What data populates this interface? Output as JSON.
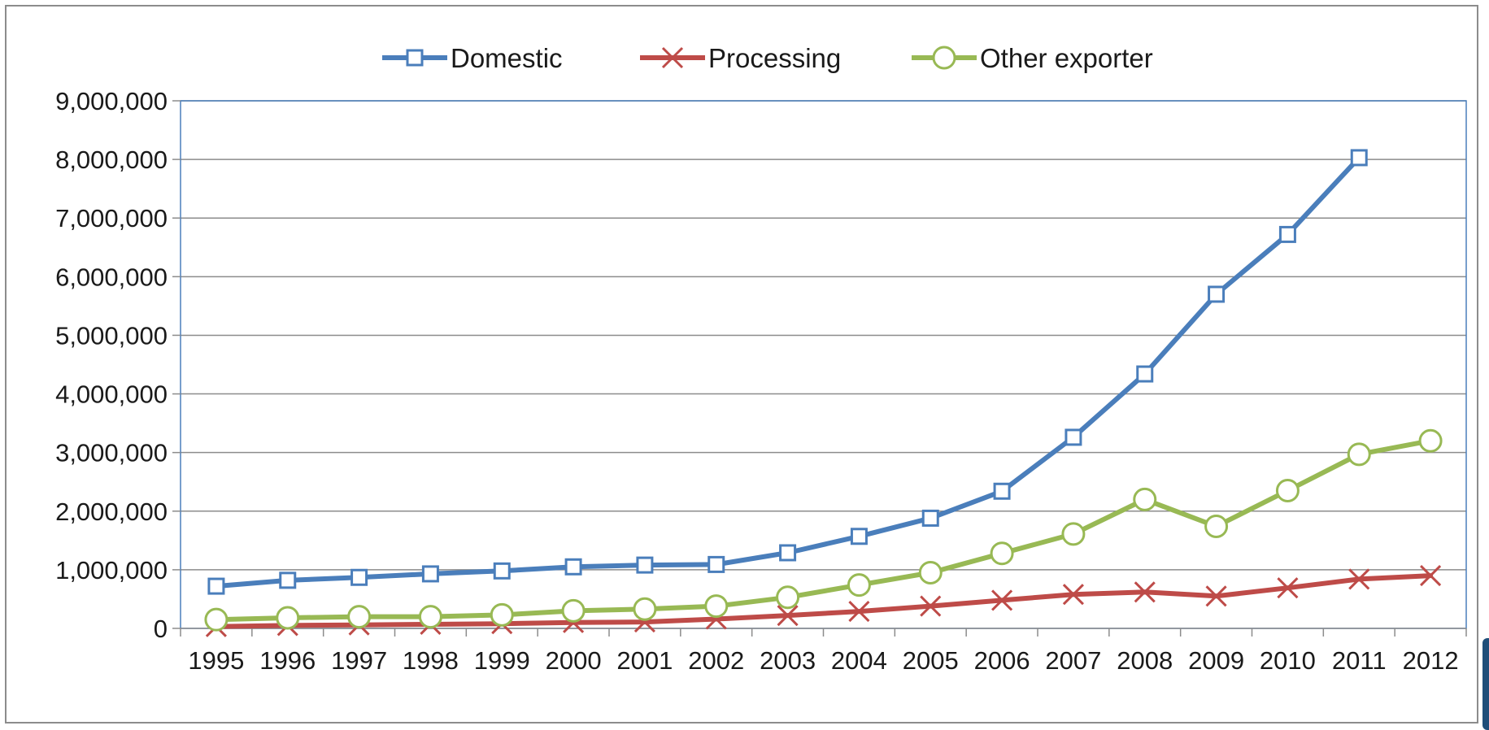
{
  "chart_data": {
    "type": "line",
    "x": [
      "1995",
      "1996",
      "1997",
      "1998",
      "1999",
      "2000",
      "2001",
      "2002",
      "2003",
      "2004",
      "2005",
      "2006",
      "2007",
      "2008",
      "2009",
      "2010",
      "2011",
      "2012"
    ],
    "ylim": [
      0,
      9000000
    ],
    "yticks": [
      "0",
      "1,000,000",
      "2,000,000",
      "3,000,000",
      "4,000,000",
      "5,000,000",
      "6,000,000",
      "7,000,000",
      "8,000,000",
      "9,000,000"
    ],
    "ytick_values": [
      0,
      1000000,
      2000000,
      3000000,
      4000000,
      5000000,
      6000000,
      7000000,
      8000000,
      9000000
    ],
    "grid": true,
    "legend_position": "top",
    "series": [
      {
        "name": "Domestic",
        "color": "#4a7ebb",
        "marker": "square",
        "values": [
          720000,
          820000,
          870000,
          930000,
          980000,
          1050000,
          1080000,
          1090000,
          1290000,
          1570000,
          1880000,
          2340000,
          3260000,
          4340000,
          5700000,
          6720000,
          8030000,
          null
        ]
      },
      {
        "name": "Processing",
        "color": "#be4b48",
        "marker": "x",
        "values": [
          30000,
          50000,
          60000,
          70000,
          80000,
          100000,
          110000,
          160000,
          220000,
          290000,
          380000,
          480000,
          580000,
          620000,
          550000,
          690000,
          840000,
          900000
        ]
      },
      {
        "name": "Other exporter",
        "color": "#98b954",
        "marker": "circle",
        "values": [
          150000,
          180000,
          200000,
          200000,
          230000,
          300000,
          330000,
          380000,
          530000,
          740000,
          950000,
          1280000,
          1610000,
          2200000,
          1740000,
          2350000,
          2970000,
          3200000
        ]
      }
    ]
  }
}
